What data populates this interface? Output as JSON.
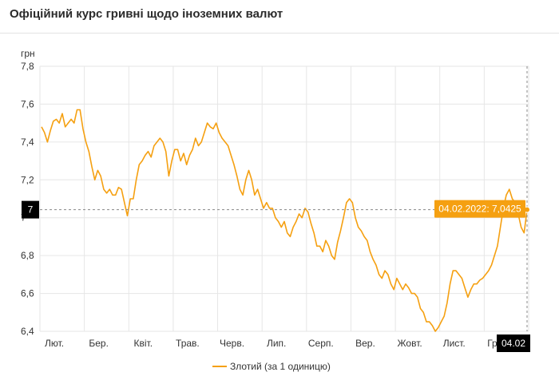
{
  "header": {
    "title": "Офіційний курс гривні щодо іноземних валют"
  },
  "chart_data": {
    "type": "line",
    "ylabel": "грн",
    "ylim": [
      6.4,
      7.8
    ],
    "yticks": [
      "7,8",
      "7,6",
      "7,4",
      "7,2",
      "7",
      "6,8",
      "6,6",
      "6,4"
    ],
    "x_tick_labels": [
      "Лют.",
      "Бер.",
      "Квіт.",
      "Трав.",
      "Черв.",
      "Лип.",
      "Серп.",
      "Вер.",
      "Жовт.",
      "Лист.",
      "Груд.",
      "04.02"
    ],
    "grid": true,
    "legend_position": "bottom",
    "series": [
      {
        "name": "Злотий (за 1 одиницю)",
        "color": "#f5a011",
        "values": [
          7.48,
          7.45,
          7.4,
          7.46,
          7.51,
          7.52,
          7.5,
          7.55,
          7.48,
          7.5,
          7.52,
          7.5,
          7.57,
          7.57,
          7.47,
          7.4,
          7.35,
          7.27,
          7.2,
          7.25,
          7.22,
          7.15,
          7.13,
          7.15,
          7.12,
          7.12,
          7.16,
          7.15,
          7.08,
          7.01,
          7.1,
          7.1,
          7.2,
          7.28,
          7.3,
          7.33,
          7.35,
          7.32,
          7.38,
          7.4,
          7.42,
          7.4,
          7.35,
          7.22,
          7.3,
          7.36,
          7.36,
          7.3,
          7.34,
          7.28,
          7.33,
          7.36,
          7.42,
          7.38,
          7.4,
          7.45,
          7.5,
          7.48,
          7.47,
          7.5,
          7.45,
          7.42,
          7.4,
          7.38,
          7.33,
          7.28,
          7.22,
          7.15,
          7.12,
          7.2,
          7.25,
          7.2,
          7.12,
          7.15,
          7.1,
          7.05,
          7.08,
          7.05,
          7.05,
          7.0,
          6.98,
          6.95,
          6.98,
          6.92,
          6.9,
          6.95,
          6.98,
          7.02,
          7.0,
          7.05,
          7.03,
          6.97,
          6.92,
          6.85,
          6.85,
          6.82,
          6.88,
          6.85,
          6.8,
          6.78,
          6.87,
          6.93,
          7.0,
          7.08,
          7.1,
          7.08,
          7.0,
          6.95,
          6.93,
          6.9,
          6.88,
          6.82,
          6.78,
          6.75,
          6.7,
          6.68,
          6.72,
          6.7,
          6.65,
          6.62,
          6.68,
          6.65,
          6.62,
          6.65,
          6.63,
          6.6,
          6.6,
          6.58,
          6.52,
          6.5,
          6.45,
          6.45,
          6.43,
          6.4,
          6.42,
          6.45,
          6.48,
          6.55,
          6.65,
          6.72,
          6.72,
          6.7,
          6.68,
          6.63,
          6.58,
          6.62,
          6.65,
          6.65,
          6.67,
          6.68,
          6.7,
          6.72,
          6.75,
          6.8,
          6.85,
          6.95,
          7.05,
          7.12,
          7.15,
          7.1,
          7.08,
          7.02,
          6.95,
          6.92,
          7.04
        ]
      }
    ],
    "crosshair": {
      "axis_label": "7",
      "x_label": "04.02"
    },
    "tooltip": {
      "text": "04.02.2022: 7,0425"
    },
    "last_value": 7.0425
  }
}
